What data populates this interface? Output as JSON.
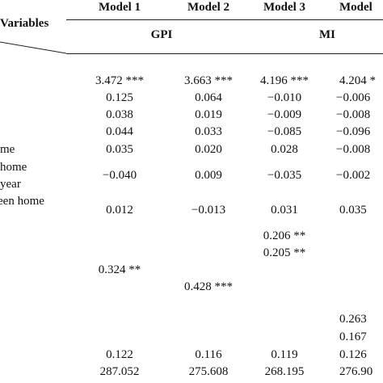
{
  "header": {
    "models": [
      "Model 1",
      "Model 2",
      "Model 3",
      "Model"
    ],
    "variables": "Variables",
    "groups": [
      "GPI",
      "MI"
    ]
  },
  "left_labels": [
    "me",
    "home",
    "year",
    "een home"
  ],
  "rows": [
    [
      "3.472 ***",
      "3.663 ***",
      "4.196 ***",
      "4.204 *"
    ],
    [
      "0.125",
      "0.064",
      "−0.010",
      "−0.006"
    ],
    [
      "0.038",
      "0.019",
      "−0.009",
      "−0.008"
    ],
    [
      "0.044",
      "0.033",
      "−0.085",
      "−0.096"
    ],
    [
      "0.035",
      "0.020",
      "0.028",
      "−0.008"
    ],
    [
      "−0.040",
      "0.009",
      "−0.035",
      "−0.002"
    ],
    [
      "0.012",
      "−0.013",
      "0.031",
      "0.035"
    ],
    [
      null,
      null,
      "0.206 **",
      null
    ],
    [
      null,
      null,
      "0.205 **",
      null
    ],
    [
      "0.324 **",
      null,
      null,
      null
    ],
    [
      null,
      "0.428 ***",
      null,
      null
    ],
    [
      null,
      null,
      null,
      "0.263"
    ],
    [
      null,
      null,
      null,
      "0.167"
    ],
    [
      "0.122",
      "0.116",
      "0.119",
      "0.126"
    ],
    [
      "287.052",
      "275.608",
      "268.195",
      "276.90"
    ]
  ]
}
